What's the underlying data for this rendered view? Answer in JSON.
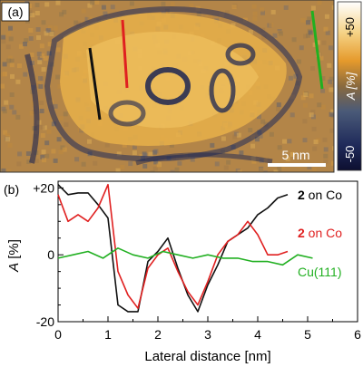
{
  "panel_a": {
    "label": "(a)",
    "scalebar_label": "5 nm",
    "colorbar": {
      "max_label": "+50",
      "min_label": "-50",
      "title": "A [%]"
    },
    "colors": {
      "black_line": "#111111",
      "red_line": "#e02020",
      "green_line": "#20b020"
    }
  },
  "panel_b": {
    "label": "(b)"
  },
  "chart_data": {
    "type": "line",
    "xlabel": "Lateral distance [nm]",
    "ylabel": "A [%]",
    "xlim": [
      0,
      6
    ],
    "ylim": [
      -20,
      22
    ],
    "xticks": [
      "0",
      "1",
      "2",
      "3",
      "4",
      "5",
      "6"
    ],
    "yticks": [
      {
        "value": 20,
        "label": "+20"
      },
      {
        "value": 0,
        "label": "0"
      },
      {
        "value": -20,
        "label": "-20"
      }
    ],
    "series": [
      {
        "name": "2 on Co",
        "name_bold": "2",
        "name_rest": " on Co",
        "color": "#111111",
        "x": [
          0,
          0.2,
          0.4,
          0.6,
          0.8,
          1.0,
          1.2,
          1.4,
          1.6,
          1.8,
          2.0,
          2.2,
          2.4,
          2.6,
          2.8,
          3.0,
          3.2,
          3.4,
          3.6,
          3.8,
          4.0,
          4.2,
          4.4,
          4.6
        ],
        "y": [
          21,
          18,
          18.5,
          18.5,
          15,
          11,
          -15,
          -17,
          -17,
          -2,
          1,
          5,
          -4,
          -12,
          -17,
          -9,
          -3,
          4,
          6,
          8,
          12,
          14,
          17,
          18
        ]
      },
      {
        "name": "2 on Co",
        "name_bold": "2",
        "name_rest": " on Co",
        "color": "#e02020",
        "x": [
          0,
          0.2,
          0.4,
          0.6,
          0.8,
          1.0,
          1.2,
          1.4,
          1.6,
          1.8,
          2.0,
          2.2,
          2.4,
          2.6,
          2.8,
          3.0,
          3.2,
          3.4,
          3.6,
          3.8,
          4.0,
          4.2,
          4.4,
          4.6
        ],
        "y": [
          18,
          10,
          12,
          10,
          14,
          21,
          -5,
          -12,
          -16,
          -4,
          0,
          2,
          -5,
          -11,
          -15,
          -8,
          0,
          4,
          6,
          10,
          6,
          0,
          0,
          1
        ]
      },
      {
        "name": "Cu(111)",
        "color": "#22b022",
        "x": [
          0,
          0.3,
          0.6,
          0.9,
          1.2,
          1.5,
          1.8,
          2.1,
          2.4,
          2.7,
          3.0,
          3.3,
          3.6,
          3.9,
          4.2,
          4.5,
          4.8,
          5.1
        ],
        "y": [
          -1,
          0,
          1,
          -1,
          2,
          0,
          -1,
          1,
          0,
          -1,
          0,
          -1,
          -1,
          -2,
          -2,
          -3,
          0,
          -1
        ]
      }
    ]
  }
}
